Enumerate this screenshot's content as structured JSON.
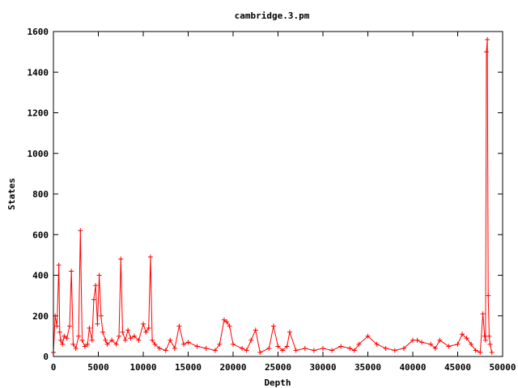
{
  "chart_data": {
    "type": "line",
    "title": "cambridge.3.pm",
    "xlabel": "Depth",
    "ylabel": "States",
    "xlim": [
      0,
      50000
    ],
    "ylim": [
      0,
      1600
    ],
    "xticks": [
      0,
      5000,
      10000,
      15000,
      20000,
      25000,
      30000,
      35000,
      40000,
      45000,
      50000
    ],
    "yticks": [
      0,
      200,
      400,
      600,
      800,
      1000,
      1200,
      1400,
      1600
    ],
    "xtick_labels": [
      "0",
      "5000",
      "10000",
      "15000",
      "20000",
      "25000",
      "30000",
      "35000",
      "40000",
      "45000",
      "50000"
    ],
    "ytick_labels": [
      "0",
      "200",
      "400",
      "600",
      "800",
      "1000",
      "1200",
      "1400",
      "1600"
    ],
    "marker": "plus",
    "grid": false,
    "legend": "none",
    "series_color": "#ff0000",
    "series": [
      {
        "x": [
          0,
          200,
          400,
          600,
          700,
          800,
          1000,
          1200,
          1500,
          1800,
          2000,
          2200,
          2500,
          2800,
          3000,
          3200,
          3500,
          3800,
          4000,
          4300,
          4500,
          4700,
          4900,
          5100,
          5300,
          5500,
          5800,
          6000,
          6500,
          7000,
          7300,
          7500,
          7700,
          8000,
          8300,
          8600,
          9000,
          9500,
          10000,
          10300,
          10600,
          10800,
          11000,
          11300,
          11800,
          12500,
          13000,
          13500,
          14000,
          14500,
          15000,
          16000,
          17000,
          18000,
          18500,
          19000,
          19300,
          19600,
          20000,
          21000,
          21500,
          22000,
          22500,
          23000,
          24000,
          24500,
          25000,
          25500,
          26000,
          26300,
          27000,
          28000,
          29000,
          30000,
          31000,
          32000,
          33000,
          33500,
          34000,
          35000,
          36000,
          37000,
          38000,
          39000,
          40000,
          40500,
          41000,
          42000,
          42500,
          43000,
          44000,
          45000,
          45500,
          46000,
          46500,
          47000,
          47500,
          47800,
          48000,
          48100,
          48200,
          48300,
          48400,
          48500,
          48600,
          48800
        ],
        "y": [
          20,
          200,
          150,
          450,
          120,
          80,
          60,
          100,
          90,
          150,
          420,
          60,
          40,
          100,
          620,
          80,
          50,
          60,
          140,
          80,
          280,
          350,
          160,
          400,
          200,
          120,
          80,
          60,
          80,
          60,
          100,
          480,
          120,
          80,
          130,
          90,
          100,
          80,
          160,
          120,
          140,
          490,
          80,
          60,
          40,
          30,
          80,
          40,
          150,
          60,
          70,
          50,
          40,
          30,
          60,
          180,
          170,
          150,
          60,
          40,
          30,
          80,
          130,
          20,
          40,
          150,
          50,
          30,
          50,
          120,
          30,
          40,
          30,
          40,
          30,
          50,
          40,
          30,
          60,
          100,
          60,
          40,
          30,
          40,
          80,
          80,
          70,
          60,
          40,
          80,
          50,
          60,
          110,
          90,
          60,
          30,
          20,
          210,
          100,
          80,
          1500,
          1560,
          300,
          100,
          60,
          20
        ]
      }
    ]
  }
}
